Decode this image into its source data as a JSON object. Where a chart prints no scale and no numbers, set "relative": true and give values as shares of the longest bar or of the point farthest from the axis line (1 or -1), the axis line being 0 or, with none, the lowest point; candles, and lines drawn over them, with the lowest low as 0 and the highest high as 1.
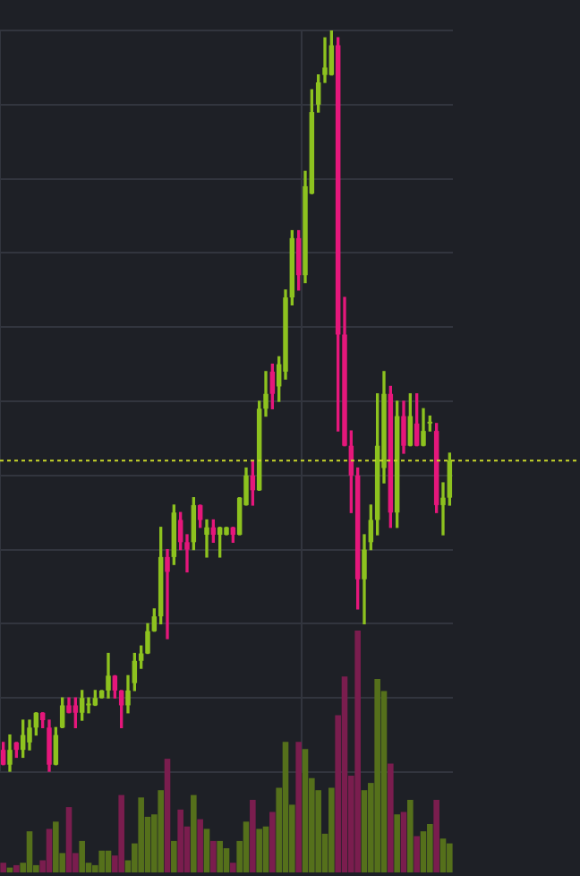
{
  "chart_data": [
    {
      "type": "candlestick",
      "relative": true,
      "grid": true,
      "categories": [
        null,
        null,
        null,
        null,
        null,
        null,
        null,
        null,
        null,
        null,
        null,
        null,
        null,
        null,
        null,
        null,
        null,
        null,
        null,
        null,
        null,
        null,
        null,
        null,
        null,
        null,
        null,
        null,
        null,
        null,
        null,
        null,
        null,
        null,
        null,
        null,
        null,
        null,
        null,
        null,
        null,
        null,
        null,
        null,
        null,
        null,
        null,
        null,
        null,
        null,
        null,
        null,
        null,
        null,
        null,
        null,
        null,
        null,
        null,
        null,
        null,
        null,
        null,
        null,
        null,
        null,
        null,
        null,
        null
      ],
      "ohlc": [
        [
          0.03,
          0.04,
          0.01,
          0.01
        ],
        [
          0.01,
          0.05,
          0.0,
          0.03
        ],
        [
          0.04,
          0.04,
          0.02,
          0.03
        ],
        [
          0.03,
          0.07,
          0.02,
          0.05
        ],
        [
          0.04,
          0.07,
          0.03,
          0.06
        ],
        [
          0.06,
          0.08,
          0.05,
          0.08
        ],
        [
          0.08,
          0.08,
          0.06,
          0.07
        ],
        [
          0.06,
          0.07,
          0.0,
          0.01
        ],
        [
          0.01,
          0.06,
          0.01,
          0.05
        ],
        [
          0.06,
          0.1,
          0.06,
          0.09
        ],
        [
          0.09,
          0.1,
          0.08,
          0.08
        ],
        [
          0.09,
          0.1,
          0.06,
          0.08
        ],
        [
          0.08,
          0.11,
          0.07,
          0.1
        ],
        [
          0.09,
          0.1,
          0.08,
          0.09
        ],
        [
          0.09,
          0.11,
          0.09,
          0.1
        ],
        [
          0.1,
          0.11,
          0.1,
          0.11
        ],
        [
          0.11,
          0.16,
          0.1,
          0.13
        ],
        [
          0.13,
          0.13,
          0.1,
          0.11
        ],
        [
          0.11,
          0.11,
          0.06,
          0.09
        ],
        [
          0.09,
          0.13,
          0.08,
          0.11
        ],
        [
          0.12,
          0.16,
          0.11,
          0.15
        ],
        [
          0.15,
          0.17,
          0.14,
          0.16
        ],
        [
          0.16,
          0.2,
          0.16,
          0.19
        ],
        [
          0.19,
          0.22,
          0.19,
          0.21
        ],
        [
          0.21,
          0.33,
          0.2,
          0.29
        ],
        [
          0.29,
          0.3,
          0.18,
          0.27
        ],
        [
          0.29,
          0.36,
          0.28,
          0.35
        ],
        [
          0.34,
          0.35,
          0.3,
          0.31
        ],
        [
          0.31,
          0.32,
          0.27,
          0.3
        ],
        [
          0.31,
          0.37,
          0.3,
          0.36
        ],
        [
          0.36,
          0.36,
          0.33,
          0.34
        ],
        [
          0.32,
          0.34,
          0.29,
          0.33
        ],
        [
          0.33,
          0.34,
          0.31,
          0.32
        ],
        [
          0.32,
          0.33,
          0.29,
          0.33
        ],
        [
          0.32,
          0.33,
          0.32,
          0.33
        ],
        [
          0.33,
          0.33,
          0.31,
          0.32
        ],
        [
          0.32,
          0.37,
          0.32,
          0.37
        ],
        [
          0.36,
          0.41,
          0.36,
          0.4
        ],
        [
          0.4,
          0.42,
          0.36,
          0.38
        ],
        [
          0.38,
          0.5,
          0.38,
          0.49
        ],
        [
          0.49,
          0.54,
          0.48,
          0.51
        ],
        [
          0.54,
          0.55,
          0.49,
          0.51
        ],
        [
          0.52,
          0.56,
          0.5,
          0.55
        ],
        [
          0.54,
          0.65,
          0.53,
          0.64
        ],
        [
          0.64,
          0.73,
          0.63,
          0.72
        ],
        [
          0.72,
          0.73,
          0.65,
          0.67
        ],
        [
          0.67,
          0.81,
          0.66,
          0.79
        ],
        [
          0.78,
          0.92,
          0.78,
          0.89
        ],
        [
          0.9,
          0.94,
          0.89,
          0.93
        ],
        [
          0.94,
          0.99,
          0.93,
          0.95
        ],
        [
          0.94,
          1.0,
          0.94,
          0.98
        ],
        [
          0.98,
          0.99,
          0.46,
          0.59
        ],
        [
          0.59,
          0.64,
          0.44,
          0.44
        ],
        [
          0.44,
          0.46,
          0.35,
          0.4
        ],
        [
          0.4,
          0.41,
          0.22,
          0.26
        ],
        [
          0.26,
          0.32,
          0.2,
          0.3
        ],
        [
          0.31,
          0.36,
          0.3,
          0.34
        ],
        [
          0.34,
          0.51,
          0.32,
          0.44
        ],
        [
          0.41,
          0.54,
          0.39,
          0.51
        ],
        [
          0.51,
          0.52,
          0.33,
          0.35
        ],
        [
          0.35,
          0.5,
          0.33,
          0.48
        ],
        [
          0.48,
          0.5,
          0.43,
          0.44
        ],
        [
          0.44,
          0.51,
          0.44,
          0.48
        ],
        [
          0.47,
          0.51,
          0.44,
          0.44
        ],
        [
          0.44,
          0.49,
          0.44,
          0.46
        ],
        [
          0.47,
          0.48,
          0.46,
          0.47
        ],
        [
          0.46,
          0.47,
          0.35,
          0.36
        ],
        [
          0.36,
          0.39,
          0.32,
          0.37
        ],
        [
          0.37,
          0.43,
          0.36,
          0.42
        ]
      ],
      "colors": [
        "#e5177b",
        "#8dc21f",
        "#e5177b",
        "#8dc21f",
        "#8dc21f",
        "#8dc21f",
        "#e5177b",
        "#e5177b",
        "#8dc21f",
        "#8dc21f",
        "#e5177b",
        "#e5177b",
        "#8dc21f",
        "#8dc21f",
        "#8dc21f",
        "#8dc21f",
        "#8dc21f",
        "#e5177b",
        "#e5177b",
        "#8dc21f",
        "#8dc21f",
        "#8dc21f",
        "#8dc21f",
        "#8dc21f",
        "#8dc21f",
        "#e5177b",
        "#8dc21f",
        "#e5177b",
        "#e5177b",
        "#8dc21f",
        "#e5177b",
        "#8dc21f",
        "#e5177b",
        "#8dc21f",
        "#8dc21f",
        "#e5177b",
        "#8dc21f",
        "#8dc21f",
        "#e5177b",
        "#8dc21f",
        "#8dc21f",
        "#e5177b",
        "#8dc21f",
        "#8dc21f",
        "#8dc21f",
        "#e5177b",
        "#8dc21f",
        "#8dc21f",
        "#8dc21f",
        "#8dc21f",
        "#8dc21f",
        "#e5177b",
        "#e5177b",
        "#e5177b",
        "#e5177b",
        "#8dc21f",
        "#8dc21f",
        "#8dc21f",
        "#8dc21f",
        "#e5177b",
        "#8dc21f",
        "#e5177b",
        "#8dc21f",
        "#e5177b",
        "#8dc21f",
        "#8dc21f",
        "#e5177b",
        "#8dc21f",
        "#8dc21f"
      ],
      "ref_lines": [
        {
          "axis": "y",
          "value": 0.42,
          "color": "#c8d62b",
          "line_style": "dotted"
        }
      ]
    },
    {
      "type": "bar",
      "relative": true,
      "categories": [
        null,
        null,
        null,
        null,
        null,
        null,
        null,
        null,
        null,
        null,
        null,
        null,
        null,
        null,
        null,
        null,
        null,
        null,
        null,
        null,
        null,
        null,
        null,
        null,
        null,
        null,
        null,
        null,
        null,
        null,
        null,
        null,
        null,
        null,
        null,
        null,
        null,
        null,
        null,
        null,
        null,
        null,
        null,
        null,
        null,
        null,
        null,
        null,
        null,
        null,
        null,
        null,
        null,
        null,
        null,
        null,
        null,
        null,
        null,
        null,
        null,
        null,
        null,
        null,
        null,
        null,
        null,
        null,
        null
      ],
      "values": [
        0.04,
        0.02,
        0.03,
        0.04,
        0.17,
        0.03,
        0.05,
        0.18,
        0.21,
        0.08,
        0.27,
        0.08,
        0.13,
        0.04,
        0.03,
        0.09,
        0.09,
        0.07,
        0.32,
        0.05,
        0.12,
        0.31,
        0.23,
        0.24,
        0.34,
        0.47,
        0.13,
        0.26,
        0.19,
        0.32,
        0.22,
        0.18,
        0.13,
        0.13,
        0.1,
        0.04,
        0.13,
        0.21,
        0.3,
        0.18,
        0.19,
        0.25,
        0.35,
        0.54,
        0.28,
        0.54,
        0.51,
        0.39,
        0.34,
        0.16,
        0.35,
        0.65,
        0.81,
        0.4,
        1,
        0.34,
        0.37,
        0.8,
        0.75,
        0.45,
        0.24,
        0.25,
        0.3,
        0.15,
        0.17,
        0.2,
        0.3,
        0.14,
        0.12
      ],
      "colors": [
        "#7a1d4e",
        "#55701b",
        "#7a1d4e",
        "#55701b",
        "#55701b",
        "#55701b",
        "#7a1d4e",
        "#7a1d4e",
        "#55701b",
        "#55701b",
        "#7a1d4e",
        "#7a1d4e",
        "#55701b",
        "#55701b",
        "#55701b",
        "#55701b",
        "#55701b",
        "#7a1d4e",
        "#7a1d4e",
        "#55701b",
        "#55701b",
        "#55701b",
        "#55701b",
        "#55701b",
        "#55701b",
        "#7a1d4e",
        "#55701b",
        "#7a1d4e",
        "#7a1d4e",
        "#55701b",
        "#7a1d4e",
        "#55701b",
        "#7a1d4e",
        "#55701b",
        "#55701b",
        "#7a1d4e",
        "#55701b",
        "#55701b",
        "#7a1d4e",
        "#55701b",
        "#55701b",
        "#7a1d4e",
        "#55701b",
        "#55701b",
        "#55701b",
        "#7a1d4e",
        "#55701b",
        "#55701b",
        "#55701b",
        "#55701b",
        "#55701b",
        "#7a1d4e",
        "#7a1d4e",
        "#7a1d4e",
        "#7a1d4e",
        "#55701b",
        "#55701b",
        "#55701b",
        "#55701b",
        "#7a1d4e",
        "#55701b",
        "#7a1d4e",
        "#55701b",
        "#7a1d4e",
        "#55701b",
        "#55701b",
        "#7a1d4e",
        "#55701b",
        "#55701b"
      ]
    }
  ]
}
